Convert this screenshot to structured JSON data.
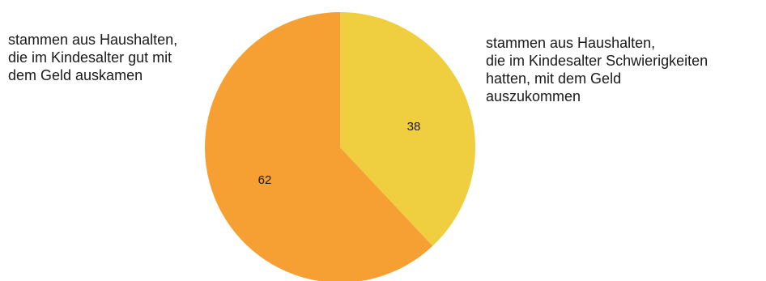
{
  "chart_data": {
    "type": "pie",
    "slices": [
      {
        "label": "stammen aus Haushalten,\ndie im Kindesalter Schwierigkeiten\nhatten, mit dem Geld\nauszukommen",
        "value": 38,
        "value_label": "38",
        "color": "#EFCF3F"
      },
      {
        "label": "stammen aus Haushalten,\ndie im Kindesalter gut mit\ndem Geld auskamen",
        "value": 62,
        "value_label": "62",
        "color": "#F6A033"
      }
    ],
    "start_angle": "12 o'clock",
    "direction": "clockwise",
    "legend": "side labels"
  }
}
